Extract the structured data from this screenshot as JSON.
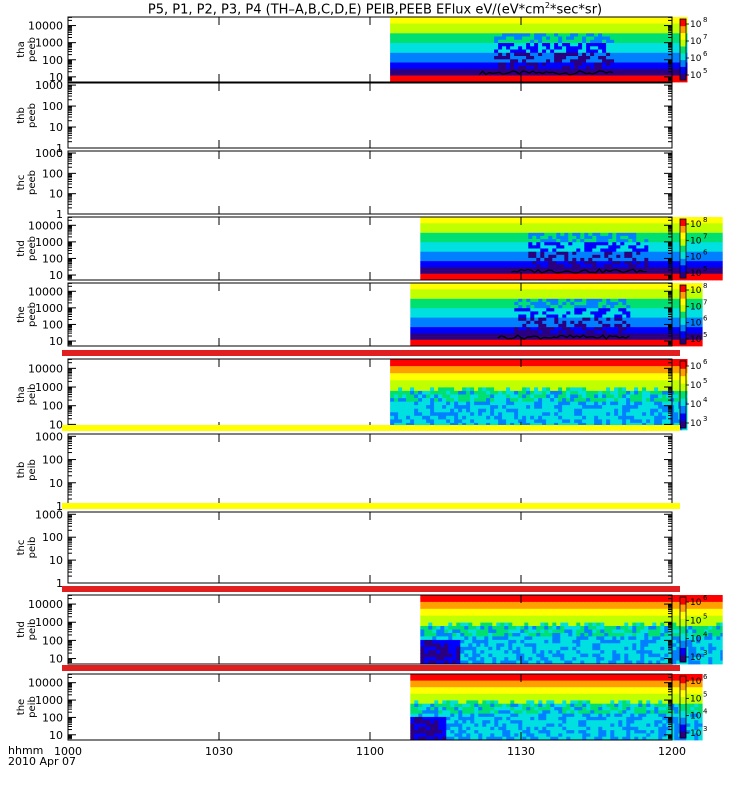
{
  "title": {
    "prefix": "P5, P1, P2, P3, P4 (TH–A,B,C,D,E) PEIB,PEEB EFlux eV/(eV*cm",
    "sup": "2",
    "suffix": "*sec*sr)"
  },
  "footer": {
    "time_label": "hhmm",
    "date_label": "2010 Apr 07"
  },
  "chart_data": {
    "type": "heatmap",
    "x_axis": {
      "range": [
        "1000",
        "1200"
      ],
      "tick_labels": [
        "1000",
        "1030",
        "1100",
        "1130",
        "1200"
      ],
      "tick_values_min": [
        0,
        30,
        60,
        90,
        120
      ]
    },
    "panels": [
      {
        "probe": "tha",
        "product": "peeb",
        "yticks": [
          "10",
          "100",
          "1000",
          "10000"
        ],
        "y_log_range": [
          0.7,
          4.5
        ],
        "data_min": [
          64,
          123
        ],
        "kind": "electron",
        "cbar": {
          "labels": [
            "10",
            "10",
            "10",
            "10"
          ],
          "exps": [
            "5",
            "6",
            "7",
            "8"
          ]
        }
      },
      {
        "probe": "thb",
        "product": "peeb",
        "yticks": [
          "1",
          "10",
          "100",
          "1000"
        ],
        "y_log_range": [
          0,
          3.1
        ],
        "data_min": null
      },
      {
        "probe": "thc",
        "product": "peeb",
        "yticks": [
          "1",
          "10",
          "100",
          "1000"
        ],
        "y_log_range": [
          0,
          3.1
        ],
        "data_min": null
      },
      {
        "probe": "thd",
        "product": "peeb",
        "yticks": [
          "10",
          "100",
          "1000",
          "10000"
        ],
        "y_log_range": [
          0.7,
          4.5
        ],
        "data_min": [
          70,
          130
        ],
        "kind": "electron",
        "cbar": {
          "labels": [
            "10",
            "10",
            "10",
            "10"
          ],
          "exps": [
            "5",
            "6",
            "7",
            "8"
          ]
        }
      },
      {
        "probe": "the",
        "product": "peeb",
        "yticks": [
          "10",
          "100",
          "1000",
          "10000"
        ],
        "y_log_range": [
          0.7,
          4.5
        ],
        "data_min": [
          68,
          126
        ],
        "kind": "electron",
        "cbar": {
          "labels": [
            "10",
            "10",
            "10",
            "10"
          ],
          "exps": [
            "5",
            "6",
            "7",
            "8"
          ]
        }
      },
      {
        "probe": "tha",
        "product": "peib",
        "yticks": [
          "10",
          "100",
          "1000",
          "10000"
        ],
        "y_log_range": [
          0.7,
          4.5
        ],
        "data_min": [
          64,
          123
        ],
        "kind": "ion",
        "top_bar": "#e02020",
        "cbar": {
          "labels": [
            "10",
            "10",
            "10",
            "10"
          ],
          "exps": [
            "3",
            "4",
            "5",
            "6"
          ]
        }
      },
      {
        "probe": "thb",
        "product": "peib",
        "yticks": [
          "1",
          "10",
          "100",
          "1000"
        ],
        "y_log_range": [
          0,
          3.1
        ],
        "data_min": null,
        "top_bar": "#ffff00"
      },
      {
        "probe": "thc",
        "product": "peib",
        "yticks": [
          "1",
          "10",
          "100",
          "1000"
        ],
        "y_log_range": [
          0,
          3.1
        ],
        "data_min": null,
        "top_bar": "#ffff00"
      },
      {
        "probe": "thd",
        "product": "peib",
        "yticks": [
          "10",
          "100",
          "1000",
          "10000"
        ],
        "y_log_range": [
          0.7,
          4.5
        ],
        "data_min": [
          70,
          130
        ],
        "kind": "ion",
        "top_bar": "#e02020",
        "cbar": {
          "labels": [
            "10",
            "10",
            "10",
            "10"
          ],
          "exps": [
            "3",
            "4",
            "5",
            "6"
          ]
        }
      },
      {
        "probe": "the",
        "product": "peib",
        "yticks": [
          "10",
          "100",
          "1000",
          "10000"
        ],
        "y_log_range": [
          0.7,
          4.5
        ],
        "data_min": [
          68,
          126
        ],
        "kind": "ion",
        "top_bar": "#e02020",
        "cbar": {
          "labels": [
            "10",
            "10",
            "10",
            "10"
          ],
          "exps": [
            "3",
            "4",
            "5",
            "6"
          ]
        }
      }
    ],
    "colormap": [
      "#000000",
      "#2a0080",
      "#0000ff",
      "#0080ff",
      "#00e0e0",
      "#00e070",
      "#c0ff00",
      "#ffff00",
      "#ffa000",
      "#ff0000"
    ]
  }
}
